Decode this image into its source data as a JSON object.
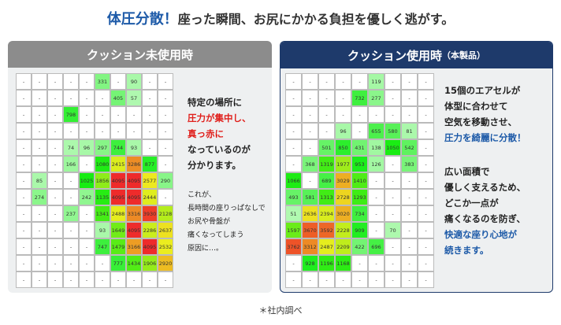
{
  "header": {
    "title": "体圧分散！",
    "subtitle": "座った瞬間、お尻にかかる負担を優しく逃がす。"
  },
  "left": {
    "title": "クッション未使用時",
    "grid": [
      [
        "-",
        "-",
        "-",
        "-",
        "-",
        331,
        "-",
        90,
        "-",
        "-"
      ],
      [
        "-",
        "-",
        "-",
        "-",
        "-",
        "-",
        405,
        57,
        "-",
        "-"
      ],
      [
        "-",
        "-",
        "-",
        798,
        "-",
        "-",
        "-",
        "-",
        "-",
        "-"
      ],
      [
        "-",
        "-",
        "-",
        "-",
        "-",
        "-",
        "-",
        "-",
        "-",
        "-"
      ],
      [
        "-",
        "-",
        "-",
        74,
        96,
        297,
        744,
        93,
        "-",
        "-"
      ],
      [
        "-",
        "-",
        "-",
        166,
        "-",
        1080,
        2415,
        3286,
        877,
        "-"
      ],
      [
        "-",
        85,
        "-",
        "-",
        1025,
        1856,
        4095,
        4095,
        2577,
        290
      ],
      [
        "-",
        274,
        "-",
        "-",
        242,
        1135,
        4095,
        4095,
        2444,
        "-"
      ],
      [
        "-",
        "-",
        "-",
        237,
        "-",
        1341,
        2488,
        3316,
        3930,
        2128
      ],
      [
        "-",
        "-",
        "-",
        "-",
        "-",
        93,
        1649,
        4095,
        2286,
        2637
      ],
      [
        "-",
        "-",
        "-",
        "-",
        "-",
        747,
        1479,
        3166,
        4095,
        2532
      ],
      [
        "-",
        "-",
        "-",
        "-",
        "-",
        "-",
        777,
        1434,
        1906,
        2920
      ],
      [
        "-",
        "-",
        "-",
        "-",
        "-",
        "-",
        "-",
        "-",
        "-",
        "-"
      ]
    ],
    "text1": [
      {
        "text": "特定の場所に",
        "color": "#222"
      },
      {
        "text": "圧力が集中し、",
        "color": "#e0201c"
      },
      {
        "text": "真っ赤に",
        "color": "#e0201c"
      },
      {
        "text": "なっているのが",
        "color": "#222"
      },
      {
        "text": "分かります。",
        "color": "#222"
      }
    ],
    "text2": [
      "これが、",
      "長時間の座りっぱなしで",
      "お尻や骨盤が",
      "痛くなってしまう",
      "原因に…。"
    ]
  },
  "right": {
    "title": "クッション使用時",
    "title_note": "（本製品）",
    "grid": [
      [
        "-",
        "-",
        "-",
        "-",
        "-",
        119,
        "-",
        "-",
        "-"
      ],
      [
        "-",
        "-",
        "-",
        "-",
        732,
        277,
        "-",
        "-",
        "-"
      ],
      [
        "-",
        "-",
        "-",
        "-",
        "-",
        "-",
        "-",
        "-",
        "-"
      ],
      [
        "-",
        "-",
        "-",
        96,
        "-",
        655,
        580,
        81,
        "-"
      ],
      [
        "-",
        "-",
        501,
        850,
        431,
        138,
        1050,
        542,
        "-"
      ],
      [
        "-",
        368,
        1319,
        1977,
        953,
        126,
        "-",
        383,
        "-"
      ],
      [
        1066,
        "-",
        689,
        3029,
        1410,
        "-",
        "-",
        "-",
        "-"
      ],
      [
        493,
        581,
        1313,
        2728,
        1293,
        "-",
        "-",
        "-",
        "-"
      ],
      [
        51,
        2636,
        2394,
        3020,
        734,
        "-",
        "-",
        "-",
        "-"
      ],
      [
        1597,
        3670,
        3592,
        2228,
        909,
        "-",
        70,
        "-",
        "-"
      ],
      [
        3762,
        3312,
        2487,
        2209,
        422,
        696,
        "-",
        "-",
        "-"
      ],
      [
        "-",
        928,
        1196,
        1168,
        "-",
        "-",
        "-",
        "-",
        "-"
      ],
      [
        "-",
        "-",
        "-",
        "-",
        "-",
        "-",
        "-",
        "-",
        "-"
      ]
    ],
    "text1": [
      {
        "text": "15個のエアセルが",
        "color": "#222"
      },
      {
        "text": "体型に合わせて",
        "color": "#222"
      },
      {
        "text": "空気を移動させ、",
        "color": "#222"
      },
      {
        "text": "圧力を綺麗に分散！",
        "color": "#1d5aa8"
      }
    ],
    "text2": [
      {
        "text": "広い面積で",
        "color": "#222"
      },
      {
        "text": "優しく支えるため、",
        "color": "#222"
      },
      {
        "text": "どこか一点が",
        "color": "#222"
      },
      {
        "text": "痛くなるのを防ぎ、",
        "color": "#222"
      },
      {
        "text": "快適な座り心地が",
        "color": "#1d5aa8"
      },
      {
        "text": "続きます。",
        "color": "#1d5aa8"
      }
    ]
  },
  "footer": "＊社内調べ"
}
